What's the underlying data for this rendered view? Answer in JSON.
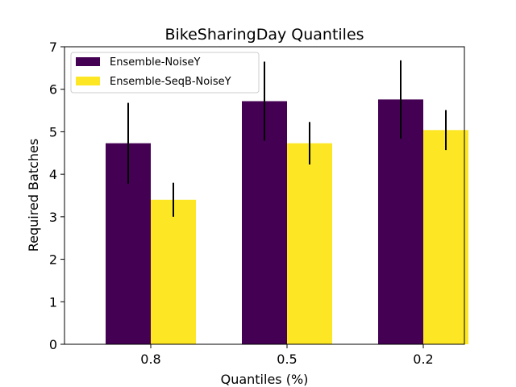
{
  "chart_data": {
    "type": "bar",
    "title": "BikeSharingDay Quantiles",
    "xlabel": "Quantiles (%)",
    "ylabel": "Required Batches",
    "categories": [
      "0.8",
      "0.5",
      "0.2"
    ],
    "ylim": [
      0,
      7
    ],
    "yticks": [
      "0",
      "1",
      "2",
      "3",
      "4",
      "5",
      "6",
      "7"
    ],
    "legend_position": "top-left",
    "series": [
      {
        "name": "Ensemble-NoiseY",
        "color": "#440154",
        "values": [
          4.73,
          5.72,
          5.76
        ],
        "errors": [
          0.95,
          0.93,
          0.92
        ]
      },
      {
        "name": "Ensemble-SeqB-NoiseY",
        "color": "#fde725",
        "values": [
          3.4,
          4.73,
          5.04
        ],
        "errors": [
          0.4,
          0.5,
          0.47
        ]
      }
    ]
  }
}
